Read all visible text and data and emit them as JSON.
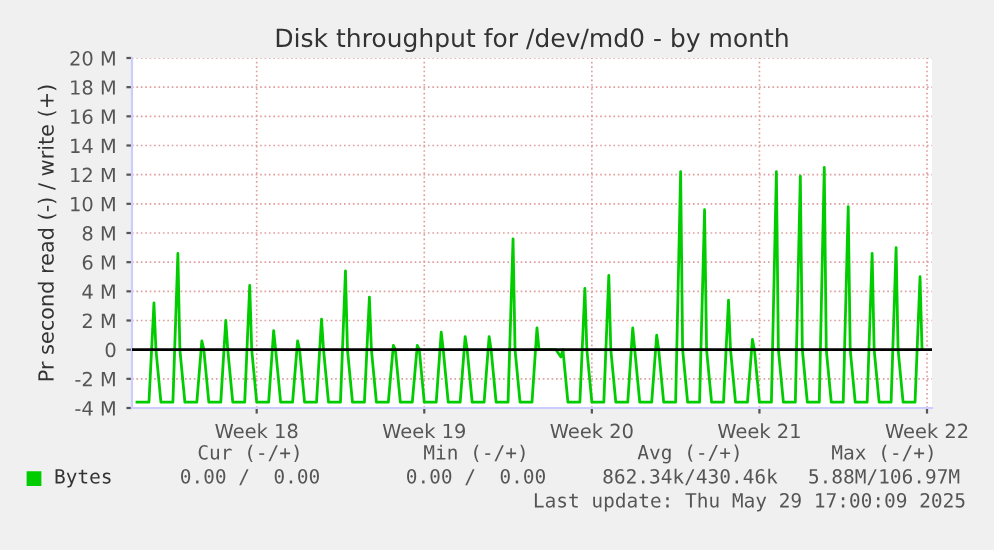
{
  "chart_data": {
    "type": "line",
    "title": "Disk throughput for /dev/md0 - by month",
    "ylabel": "Pr second read (-) / write (+)",
    "series": [
      {
        "name": "Bytes",
        "color": "#00cc00",
        "x": [
          "2025-04-23T00:00",
          "2025-04-23T12:00",
          "2025-04-23T17:00",
          "2025-04-23T19:00",
          "2025-04-24T00:00",
          "2025-04-24T12:00",
          "2025-04-24T17:00",
          "2025-04-24T19:00",
          "2025-04-25T00:00",
          "2025-04-25T12:00",
          "2025-04-25T17:00",
          "2025-04-25T19:00",
          "2025-04-26T00:00",
          "2025-04-26T12:00",
          "2025-04-26T17:00",
          "2025-04-26T19:00",
          "2025-04-27T00:00",
          "2025-04-27T12:00",
          "2025-04-27T17:00",
          "2025-04-27T19:00",
          "2025-04-28T00:00",
          "2025-04-28T12:00",
          "2025-04-28T17:00",
          "2025-04-28T19:00",
          "2025-04-29T00:00",
          "2025-04-29T12:00",
          "2025-04-29T17:00",
          "2025-04-29T19:00",
          "2025-04-30T00:00",
          "2025-04-30T12:00",
          "2025-04-30T17:00",
          "2025-04-30T19:00",
          "2025-05-01T00:00",
          "2025-05-01T12:00",
          "2025-05-01T17:00",
          "2025-05-01T19:00",
          "2025-05-02T00:00",
          "2025-05-02T12:00",
          "2025-05-02T17:00",
          "2025-05-02T19:00",
          "2025-05-03T00:00",
          "2025-05-03T12:00",
          "2025-05-03T17:00",
          "2025-05-03T19:00",
          "2025-05-04T00:00",
          "2025-05-04T12:00",
          "2025-05-04T17:00",
          "2025-05-04T19:00",
          "2025-05-05T00:00",
          "2025-05-05T12:00",
          "2025-05-05T17:00",
          "2025-05-05T19:00",
          "2025-05-06T00:00",
          "2025-05-06T12:00",
          "2025-05-06T17:00",
          "2025-05-06T19:00",
          "2025-05-07T00:00",
          "2025-05-07T12:00",
          "2025-05-07T17:00",
          "2025-05-07T19:00",
          "2025-05-08T00:00",
          "2025-05-08T12:00",
          "2025-05-08T17:00",
          "2025-05-08T19:00",
          "2025-05-09T00:00",
          "2025-05-09T12:00",
          "2025-05-09T17:00",
          "2025-05-09T19:00",
          "2025-05-10T00:00",
          "2025-05-10T12:00",
          "2025-05-10T17:00",
          "2025-05-10T19:00",
          "2025-05-11T00:00",
          "2025-05-11T12:00",
          "2025-05-11T17:00",
          "2025-05-11T19:00",
          "2025-05-12T00:00",
          "2025-05-12T12:00",
          "2025-05-12T17:00",
          "2025-05-12T19:00",
          "2025-05-13T00:00",
          "2025-05-13T12:00",
          "2025-05-13T17:00",
          "2025-05-13T19:00",
          "2025-05-14T00:00",
          "2025-05-14T12:00",
          "2025-05-14T17:00",
          "2025-05-14T19:00",
          "2025-05-15T00:00",
          "2025-05-15T12:00",
          "2025-05-15T17:00",
          "2025-05-15T19:00",
          "2025-05-16T00:00",
          "2025-05-16T12:00",
          "2025-05-16T17:00",
          "2025-05-16T19:00",
          "2025-05-17T00:00",
          "2025-05-17T12:00",
          "2025-05-17T17:00",
          "2025-05-17T19:00",
          "2025-05-18T00:00",
          "2025-05-18T12:00",
          "2025-05-18T17:00",
          "2025-05-18T19:00",
          "2025-05-19T00:00",
          "2025-05-19T12:00",
          "2025-05-19T17:00",
          "2025-05-19T19:00",
          "2025-05-20T00:00",
          "2025-05-20T12:00",
          "2025-05-20T17:00",
          "2025-05-20T19:00",
          "2025-05-21T00:00",
          "2025-05-21T12:00",
          "2025-05-21T17:00",
          "2025-05-21T19:00",
          "2025-05-22T00:00",
          "2025-05-22T12:00",
          "2025-05-22T17:00",
          "2025-05-22T19:00",
          "2025-05-23T00:00",
          "2025-05-23T12:00",
          "2025-05-23T17:00",
          "2025-05-23T19:00",
          "2025-05-24T00:00",
          "2025-05-24T12:00",
          "2025-05-24T17:00",
          "2025-05-24T19:00",
          "2025-05-25T00:00",
          "2025-05-25T12:00",
          "2025-05-25T17:00",
          "2025-05-25T19:00"
        ],
        "values": [
          -3.6,
          -3.6,
          3.2,
          0,
          -3.6,
          -3.6,
          6.6,
          0,
          -3.6,
          -3.6,
          0.6,
          0,
          -3.6,
          -3.6,
          2.0,
          0,
          -3.6,
          -3.6,
          4.4,
          0,
          -3.6,
          -3.6,
          1.3,
          0,
          -3.6,
          -3.6,
          0.6,
          0,
          -3.6,
          -3.6,
          2.1,
          0,
          -3.6,
          -3.6,
          5.4,
          0,
          -3.6,
          -3.6,
          3.6,
          0,
          -3.6,
          -3.6,
          0.3,
          0,
          -3.6,
          -3.6,
          0.3,
          0,
          -3.6,
          -3.6,
          1.2,
          0,
          -3.6,
          -3.6,
          0.9,
          0,
          -3.6,
          -3.6,
          0.9,
          0,
          -3.6,
          -3.6,
          7.6,
          0,
          -3.6,
          -3.6,
          1.5,
          0,
          0,
          0,
          -0.5,
          0,
          -3.6,
          -3.6,
          4.2,
          0,
          -3.6,
          -3.6,
          5.1,
          0,
          -3.6,
          -3.6,
          1.5,
          0,
          -3.6,
          -3.6,
          1.0,
          0,
          -3.6,
          -3.6,
          12.2,
          0,
          -3.6,
          -3.6,
          9.6,
          0,
          -3.6,
          -3.6,
          3.4,
          0,
          -3.6,
          -3.6,
          0.7,
          0,
          -3.6,
          -3.6,
          12.2,
          0,
          -3.6,
          -3.6,
          11.9,
          0,
          -3.6,
          -3.6,
          12.5,
          0,
          -3.6,
          -3.6,
          9.8,
          0,
          -3.6,
          -3.6,
          6.6,
          0,
          -3.6,
          -3.6,
          7.0,
          0,
          -3.6,
          -3.6,
          5.0,
          0
        ]
      }
    ],
    "xlim": [
      "2025-04-22T19:00",
      "2025-05-26T05:00"
    ],
    "xticks": [
      {
        "value": "2025-04-28",
        "label": "Week 18"
      },
      {
        "value": "2025-05-05",
        "label": "Week 19"
      },
      {
        "value": "2025-05-12",
        "label": "Week 20"
      },
      {
        "value": "2025-05-19",
        "label": "Week 21"
      },
      {
        "value": "2025-05-26",
        "label": "Week 22"
      }
    ],
    "ylim": [
      -4,
      20
    ],
    "yticks": [
      {
        "value": -4,
        "label": "-4 M"
      },
      {
        "value": -2,
        "label": "-2 M"
      },
      {
        "value": 0,
        "label": "0"
      },
      {
        "value": 2,
        "label": "2 M"
      },
      {
        "value": 4,
        "label": "4 M"
      },
      {
        "value": 6,
        "label": "6 M"
      },
      {
        "value": 8,
        "label": "8 M"
      },
      {
        "value": 10,
        "label": "10 M"
      },
      {
        "value": 12,
        "label": "12 M"
      },
      {
        "value": 14,
        "label": "14 M"
      },
      {
        "value": 16,
        "label": "16 M"
      },
      {
        "value": 18,
        "label": "18 M"
      },
      {
        "value": 20,
        "label": "20 M"
      }
    ],
    "ref_lines": [
      {
        "axis": "y",
        "value": 0,
        "color": "#000000"
      }
    ],
    "grid": true,
    "legend": "bottom left",
    "annotations": [
      "Cur (-/+)",
      "Min (-/+)",
      "Avg (-/+)",
      "Max (-/+)",
      "0.00 /  0.00",
      "0.00 /  0.00",
      "862.34k/430.46k",
      "5.88M/106.97M",
      "Last update: Thu May 29 17:00:09 2025"
    ]
  }
}
